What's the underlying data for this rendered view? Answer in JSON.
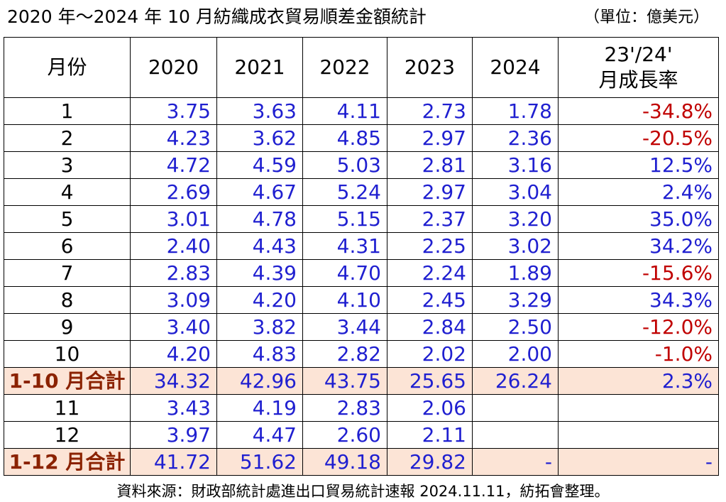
{
  "title": "2020 年～2024 年 10 月紡織成衣貿易順差金額統計",
  "unit": "（單位：億美元）",
  "headers": {
    "month": "月份",
    "y2020": "2020",
    "y2021": "2021",
    "y2022": "2022",
    "y2023": "2023",
    "y2024": "2024",
    "growth_line1": "23'/24'",
    "growth_line2": "月成長率"
  },
  "rows": [
    {
      "month": "1",
      "v2020": "3.75",
      "v2021": "3.63",
      "v2022": "4.11",
      "v2023": "2.73",
      "v2024": "1.78",
      "growth": "-34.8%"
    },
    {
      "month": "2",
      "v2020": "4.23",
      "v2021": "3.62",
      "v2022": "4.85",
      "v2023": "2.97",
      "v2024": "2.36",
      "growth": "-20.5%"
    },
    {
      "month": "3",
      "v2020": "4.72",
      "v2021": "4.59",
      "v2022": "5.03",
      "v2023": "2.81",
      "v2024": "3.16",
      "growth": "12.5%"
    },
    {
      "month": "4",
      "v2020": "2.69",
      "v2021": "4.67",
      "v2022": "5.24",
      "v2023": "2.97",
      "v2024": "3.04",
      "growth": "2.4%"
    },
    {
      "month": "5",
      "v2020": "3.01",
      "v2021": "4.78",
      "v2022": "5.15",
      "v2023": "2.37",
      "v2024": "3.20",
      "growth": "35.0%"
    },
    {
      "month": "6",
      "v2020": "2.40",
      "v2021": "4.43",
      "v2022": "4.31",
      "v2023": "2.25",
      "v2024": "3.02",
      "growth": "34.2%"
    },
    {
      "month": "7",
      "v2020": "2.83",
      "v2021": "4.39",
      "v2022": "4.70",
      "v2023": "2.24",
      "v2024": "1.89",
      "growth": "-15.6%"
    },
    {
      "month": "8",
      "v2020": "3.09",
      "v2021": "4.20",
      "v2022": "4.10",
      "v2023": "2.45",
      "v2024": "3.29",
      "growth": "34.3%"
    },
    {
      "month": "9",
      "v2020": "3.40",
      "v2021": "3.82",
      "v2022": "3.44",
      "v2023": "2.84",
      "v2024": "2.50",
      "growth": "-12.0%"
    },
    {
      "month": "10",
      "v2020": "4.20",
      "v2021": "4.83",
      "v2022": "2.82",
      "v2023": "2.02",
      "v2024": "2.00",
      "growth": "-1.0%"
    }
  ],
  "total_1_10": {
    "label": "1-10 月合計",
    "v2020": "34.32",
    "v2021": "42.96",
    "v2022": "43.75",
    "v2023": "25.65",
    "v2024": "26.24",
    "growth": "2.3%"
  },
  "rows_late": [
    {
      "month": "11",
      "v2020": "3.43",
      "v2021": "4.19",
      "v2022": "2.83",
      "v2023": "2.06"
    },
    {
      "month": "12",
      "v2020": "3.97",
      "v2021": "4.47",
      "v2022": "2.60",
      "v2023": "2.11"
    }
  ],
  "total_1_12": {
    "label": "1-12 月合計",
    "v2020": "41.72",
    "v2021": "51.62",
    "v2022": "49.18",
    "v2023": "29.82",
    "v2024": "-",
    "growth": "-"
  },
  "footer": "資料來源：財政部統計處進出口貿易統計速報 2024.11.11，紡拓會整理。",
  "colors": {
    "value_blue": "#1f1fd0",
    "negative_red": "#c00000",
    "total_bg": "#fce4d6",
    "total_label": "#8b2200"
  }
}
